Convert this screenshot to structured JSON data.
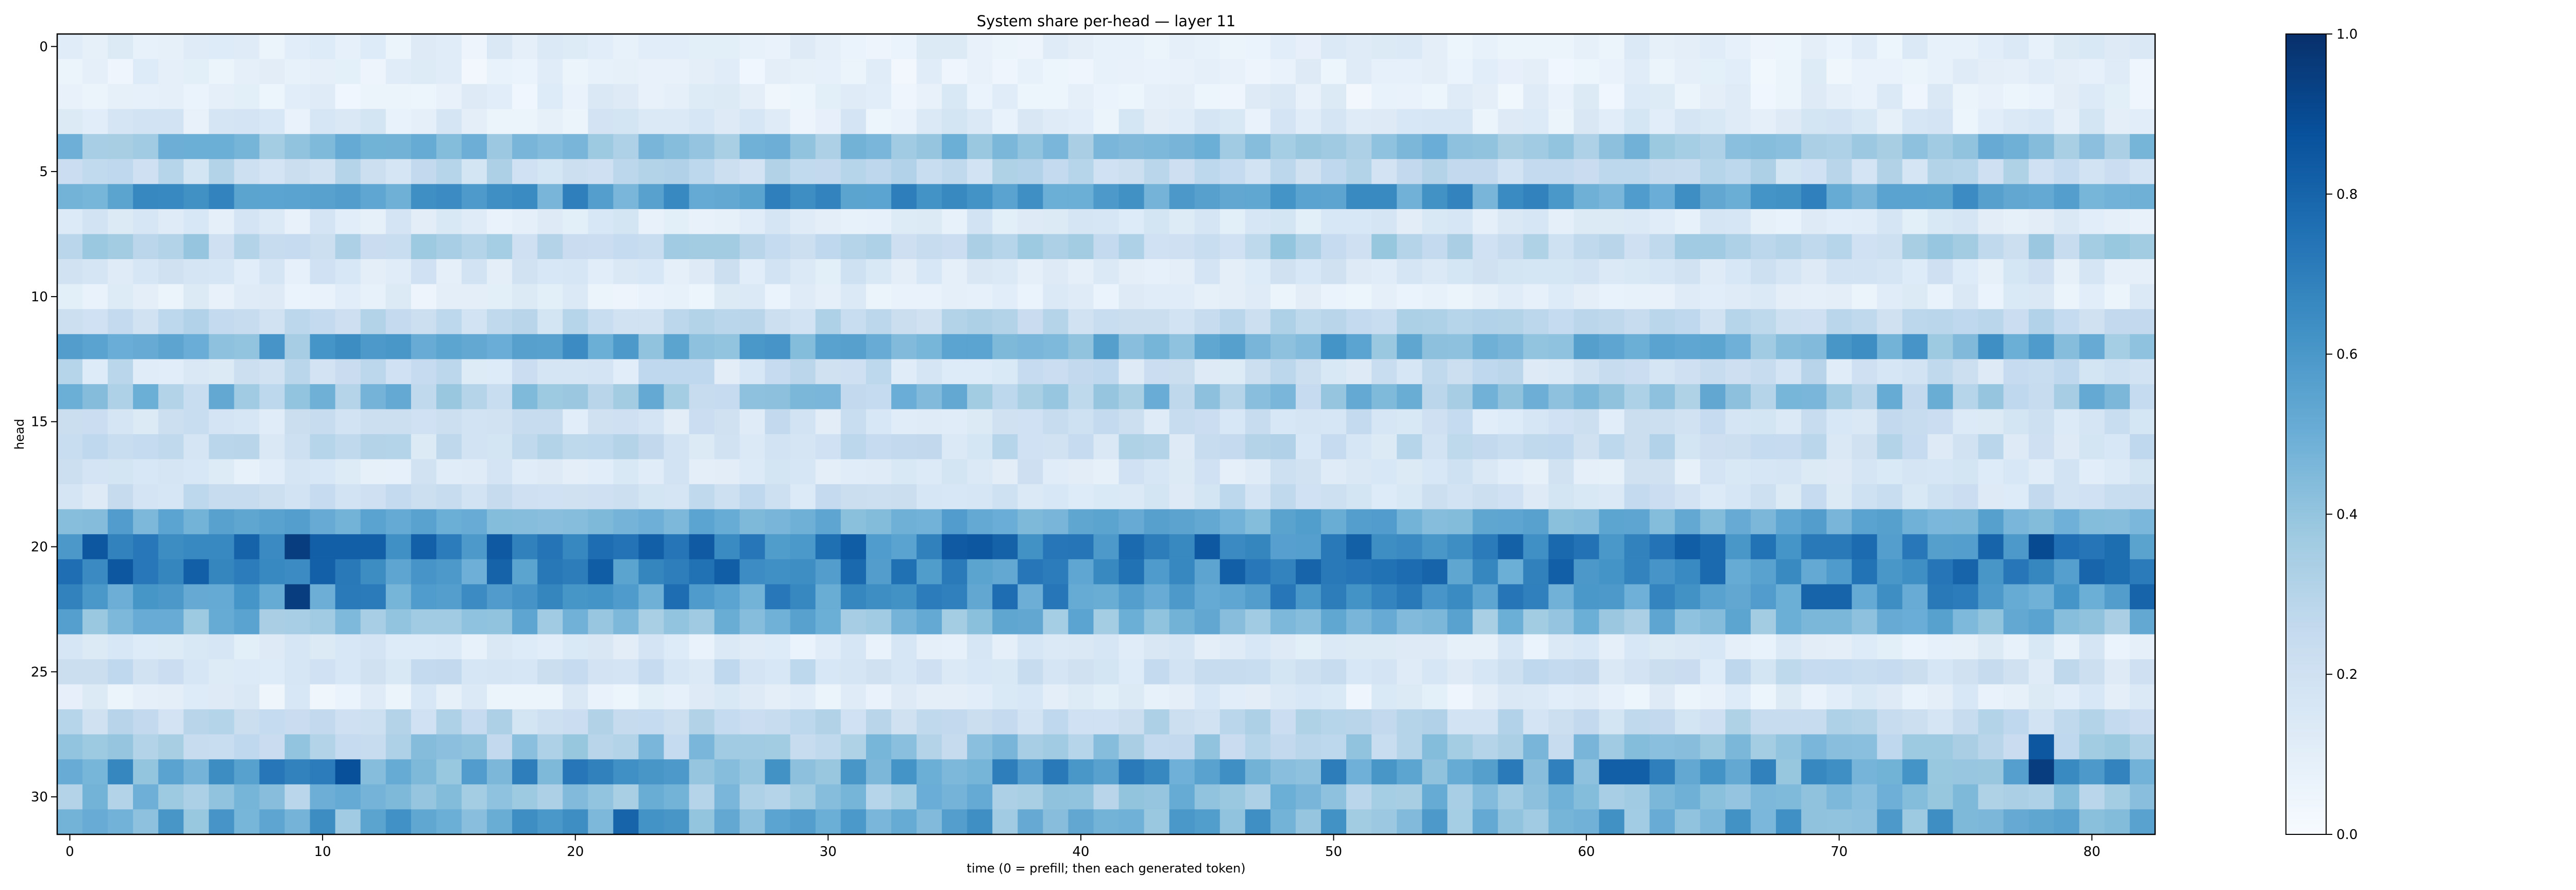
{
  "chart_data": {
    "type": "heatmap",
    "title": "System share per-head — layer 11",
    "xlabel": "time (0 = prefill; then each generated token)",
    "ylabel": "head",
    "x_range": [
      0,
      82
    ],
    "y_range": [
      0,
      31
    ],
    "x_ticks": [
      0,
      10,
      20,
      30,
      40,
      50,
      60,
      70,
      80
    ],
    "y_ticks": [
      0,
      5,
      10,
      15,
      20,
      25,
      30
    ],
    "n_cols": 83,
    "n_rows": 32,
    "colormap": "Blues",
    "colorbar": {
      "vmin": 0.0,
      "vmax": 1.0,
      "ticks": [
        0.0,
        0.2,
        0.4,
        0.6,
        0.8,
        1.0
      ]
    },
    "row_means": [
      0.1,
      0.08,
      0.09,
      0.12,
      0.42,
      0.25,
      0.58,
      0.13,
      0.3,
      0.15,
      0.1,
      0.25,
      0.5,
      0.2,
      0.38,
      0.18,
      0.22,
      0.15,
      0.2,
      0.5,
      0.7,
      0.66,
      0.62,
      0.45,
      0.12,
      0.2,
      0.1,
      0.25,
      0.35,
      0.55,
      0.4,
      0.5
    ],
    "row_spread": [
      0.05,
      0.05,
      0.06,
      0.07,
      0.1,
      0.08,
      0.12,
      0.06,
      0.1,
      0.07,
      0.05,
      0.08,
      0.15,
      0.1,
      0.15,
      0.08,
      0.1,
      0.07,
      0.08,
      0.08,
      0.15,
      0.17,
      0.15,
      0.12,
      0.06,
      0.08,
      0.06,
      0.08,
      0.12,
      0.18,
      0.12,
      0.15
    ],
    "hotspots": [
      {
        "row": 20,
        "col": 9,
        "value": 0.95
      },
      {
        "row": 22,
        "col": 9,
        "value": 0.95
      },
      {
        "row": 29,
        "col": 78,
        "value": 0.95
      },
      {
        "row": 28,
        "col": 78,
        "value": 0.85
      },
      {
        "row": 20,
        "col": 36,
        "value": 0.85
      },
      {
        "row": 20,
        "col": 78,
        "value": 0.9
      },
      {
        "row": 21,
        "col": 2,
        "value": 0.85
      },
      {
        "row": 21,
        "col": 5,
        "value": 0.82
      },
      {
        "row": 20,
        "col": 10,
        "value": 0.82
      },
      {
        "row": 20,
        "col": 11,
        "value": 0.82
      },
      {
        "row": 20,
        "col": 12,
        "value": 0.82
      },
      {
        "row": 29,
        "col": 11,
        "value": 0.88
      },
      {
        "row": 29,
        "col": 61,
        "value": 0.82
      },
      {
        "row": 29,
        "col": 62,
        "value": 0.82
      },
      {
        "row": 22,
        "col": 69,
        "value": 0.8
      },
      {
        "row": 22,
        "col": 70,
        "value": 0.8
      },
      {
        "row": 22,
        "col": 82,
        "value": 0.8
      },
      {
        "row": 31,
        "col": 22,
        "value": 0.8
      },
      {
        "row": 21,
        "col": 75,
        "value": 0.8
      }
    ]
  }
}
